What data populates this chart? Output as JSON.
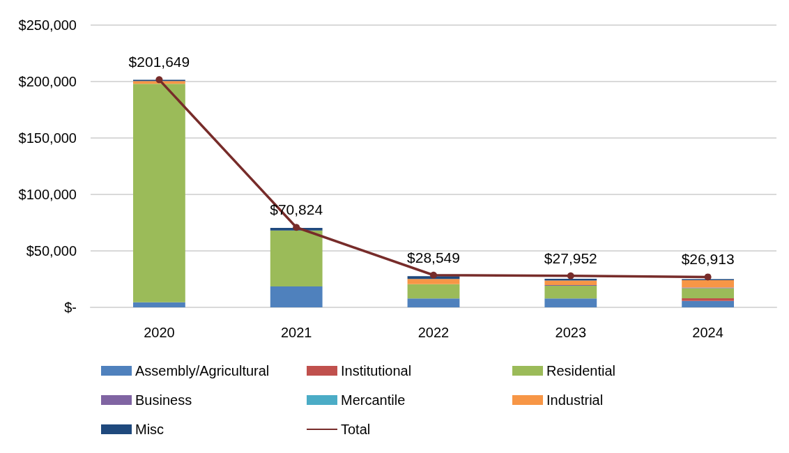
{
  "chart_data": {
    "type": "bar",
    "stacked": true,
    "categories": [
      "2020",
      "2021",
      "2022",
      "2023",
      "2024"
    ],
    "series": [
      {
        "name": "Assembly/Agricultural",
        "color": "#4f81bd",
        "values": [
          4500,
          18500,
          7800,
          7800,
          5700
        ]
      },
      {
        "name": "Institutional",
        "color": "#c0504d",
        "values": [
          0,
          0,
          0,
          0,
          2400
        ]
      },
      {
        "name": "Residential",
        "color": "#9bbb59",
        "values": [
          193500,
          49500,
          12700,
          11300,
          8900
        ]
      },
      {
        "name": "Business",
        "color": "#8064a2",
        "values": [
          0,
          0,
          0,
          700,
          600
        ]
      },
      {
        "name": "Mercantile",
        "color": "#4bacc6",
        "values": [
          0,
          0,
          0,
          0,
          0
        ]
      },
      {
        "name": "Industrial",
        "color": "#f79646",
        "values": [
          2500,
          0,
          4700,
          3900,
          6500
        ]
      },
      {
        "name": "Misc",
        "color": "#1f497d",
        "values": [
          1100,
          2300,
          2400,
          1600,
          900
        ]
      },
      {
        "name": "Total",
        "type": "line",
        "color": "#772c2a",
        "values": [
          201649,
          70824,
          28549,
          27952,
          26913
        ],
        "value_labels": [
          "$201,649",
          "$70,824",
          "$28,549",
          "$27,952",
          "$26,913"
        ]
      }
    ],
    "ylim": [
      0,
      250000
    ],
    "yticks": [
      {
        "value": 0,
        "label": "$-"
      },
      {
        "value": 50000,
        "label": "$50,000"
      },
      {
        "value": 100000,
        "label": "$100,000"
      },
      {
        "value": 150000,
        "label": "$150,000"
      },
      {
        "value": 200000,
        "label": "$200,000"
      },
      {
        "value": 250000,
        "label": "$250,000"
      }
    ],
    "grid": "y",
    "legend": "bottom",
    "marker": "circle",
    "line_style": "solid"
  }
}
